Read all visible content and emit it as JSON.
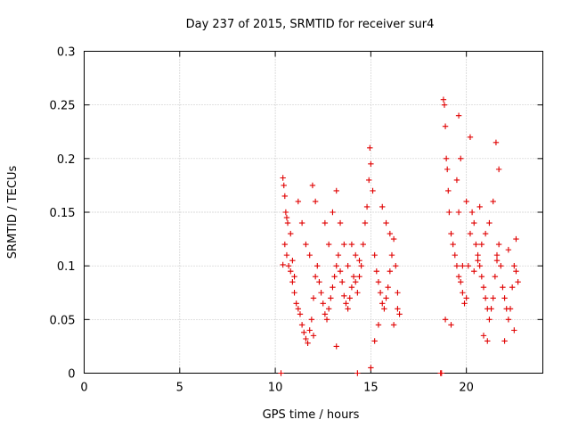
{
  "chart_data": {
    "type": "scatter",
    "title": "Day 237 of 2015, SRMTID for receiver sur4",
    "xlabel": "GPS time / hours",
    "ylabel": "SRMTID / TECUs",
    "xlim": [
      0,
      24.0
    ],
    "ylim": [
      0,
      0.3
    ],
    "xticks": [
      0,
      5,
      10,
      15,
      20
    ],
    "xtick_labels": [
      "0",
      "5",
      "10",
      "15",
      "20"
    ],
    "yticks": [
      0,
      0.05,
      0.1,
      0.15,
      0.2,
      0.25,
      0.3
    ],
    "ytick_labels": [
      "0",
      "0.05",
      "0.1",
      "0.15",
      "0.2",
      "0.25",
      "0.3"
    ],
    "grid": true,
    "marker": "+",
    "color": "#e00000",
    "series": [
      {
        "name": "SRMTID",
        "points": [
          [
            10.3,
            0.0
          ],
          [
            10.4,
            0.182
          ],
          [
            10.45,
            0.175
          ],
          [
            10.5,
            0.165
          ],
          [
            10.55,
            0.15
          ],
          [
            10.6,
            0.145
          ],
          [
            10.65,
            0.14
          ],
          [
            10.5,
            0.12
          ],
          [
            10.6,
            0.11
          ],
          [
            10.7,
            0.1
          ],
          [
            10.4,
            0.101
          ],
          [
            10.8,
            0.095
          ],
          [
            10.9,
            0.085
          ],
          [
            11.0,
            0.075
          ],
          [
            11.1,
            0.065
          ],
          [
            11.2,
            0.06
          ],
          [
            11.3,
            0.055
          ],
          [
            11.4,
            0.045
          ],
          [
            11.5,
            0.038
          ],
          [
            11.6,
            0.032
          ],
          [
            11.7,
            0.028
          ],
          [
            11.8,
            0.04
          ],
          [
            11.9,
            0.05
          ],
          [
            12.0,
            0.07
          ],
          [
            12.1,
            0.09
          ],
          [
            12.2,
            0.1
          ],
          [
            12.3,
            0.085
          ],
          [
            12.4,
            0.075
          ],
          [
            12.5,
            0.065
          ],
          [
            12.6,
            0.055
          ],
          [
            12.7,
            0.05
          ],
          [
            12.8,
            0.06
          ],
          [
            12.9,
            0.07
          ],
          [
            13.0,
            0.08
          ],
          [
            13.1,
            0.09
          ],
          [
            13.2,
            0.1
          ],
          [
            13.3,
            0.11
          ],
          [
            13.4,
            0.095
          ],
          [
            13.5,
            0.085
          ],
          [
            13.6,
            0.072
          ],
          [
            13.7,
            0.065
          ],
          [
            13.8,
            0.06
          ],
          [
            13.9,
            0.07
          ],
          [
            14.0,
            0.08
          ],
          [
            14.1,
            0.09
          ],
          [
            14.2,
            0.085
          ],
          [
            14.3,
            0.075
          ],
          [
            14.4,
            0.09
          ],
          [
            14.5,
            0.1
          ],
          [
            14.6,
            0.12
          ],
          [
            14.7,
            0.14
          ],
          [
            14.8,
            0.155
          ],
          [
            14.9,
            0.18
          ],
          [
            14.95,
            0.21
          ],
          [
            15.0,
            0.195
          ],
          [
            15.1,
            0.17
          ],
          [
            15.2,
            0.11
          ],
          [
            15.3,
            0.095
          ],
          [
            15.4,
            0.085
          ],
          [
            15.5,
            0.075
          ],
          [
            15.6,
            0.065
          ],
          [
            15.7,
            0.06
          ],
          [
            15.8,
            0.07
          ],
          [
            15.9,
            0.08
          ],
          [
            16.0,
            0.095
          ],
          [
            16.1,
            0.11
          ],
          [
            16.2,
            0.125
          ],
          [
            16.3,
            0.1
          ],
          [
            16.4,
            0.075
          ],
          [
            16.5,
            0.055
          ],
          [
            11.95,
            0.175
          ],
          [
            12.1,
            0.16
          ],
          [
            11.2,
            0.16
          ],
          [
            11.4,
            0.14
          ],
          [
            11.6,
            0.12
          ],
          [
            11.8,
            0.11
          ],
          [
            12.6,
            0.14
          ],
          [
            12.8,
            0.12
          ],
          [
            13.0,
            0.15
          ],
          [
            13.2,
            0.17
          ],
          [
            13.4,
            0.14
          ],
          [
            13.6,
            0.12
          ],
          [
            13.8,
            0.1
          ],
          [
            14.0,
            0.12
          ],
          [
            14.2,
            0.11
          ],
          [
            14.4,
            0.105
          ],
          [
            15.0,
            0.005
          ],
          [
            15.2,
            0.03
          ],
          [
            15.4,
            0.045
          ],
          [
            15.6,
            0.155
          ],
          [
            15.8,
            0.14
          ],
          [
            16.0,
            0.13
          ],
          [
            16.2,
            0.045
          ],
          [
            16.4,
            0.06
          ],
          [
            14.3,
            0.0
          ],
          [
            13.2,
            0.025
          ],
          [
            12.0,
            0.035
          ],
          [
            11.0,
            0.09
          ],
          [
            10.9,
            0.105
          ],
          [
            10.8,
            0.13
          ],
          [
            18.65,
            0.0
          ],
          [
            18.7,
            0.0
          ],
          [
            18.8,
            0.255
          ],
          [
            18.85,
            0.25
          ],
          [
            18.9,
            0.23
          ],
          [
            18.95,
            0.2
          ],
          [
            19.0,
            0.19
          ],
          [
            19.05,
            0.17
          ],
          [
            19.1,
            0.15
          ],
          [
            19.2,
            0.13
          ],
          [
            19.3,
            0.12
          ],
          [
            19.4,
            0.11
          ],
          [
            19.5,
            0.1
          ],
          [
            19.6,
            0.09
          ],
          [
            19.7,
            0.085
          ],
          [
            19.8,
            0.075
          ],
          [
            19.9,
            0.065
          ],
          [
            20.0,
            0.07
          ],
          [
            20.1,
            0.1
          ],
          [
            20.2,
            0.13
          ],
          [
            20.3,
            0.15
          ],
          [
            20.4,
            0.14
          ],
          [
            20.5,
            0.12
          ],
          [
            20.6,
            0.11
          ],
          [
            20.7,
            0.1
          ],
          [
            20.8,
            0.09
          ],
          [
            20.9,
            0.08
          ],
          [
            21.0,
            0.07
          ],
          [
            21.1,
            0.06
          ],
          [
            21.2,
            0.05
          ],
          [
            21.3,
            0.06
          ],
          [
            21.4,
            0.07
          ],
          [
            21.5,
            0.09
          ],
          [
            21.6,
            0.11
          ],
          [
            21.7,
            0.12
          ],
          [
            21.8,
            0.1
          ],
          [
            21.9,
            0.08
          ],
          [
            22.0,
            0.07
          ],
          [
            22.1,
            0.06
          ],
          [
            22.2,
            0.05
          ],
          [
            22.3,
            0.06
          ],
          [
            22.4,
            0.08
          ],
          [
            22.5,
            0.1
          ],
          [
            22.6,
            0.095
          ],
          [
            22.7,
            0.085
          ],
          [
            19.6,
            0.24
          ],
          [
            19.7,
            0.2
          ],
          [
            19.5,
            0.18
          ],
          [
            20.2,
            0.22
          ],
          [
            20.0,
            0.16
          ],
          [
            21.55,
            0.215
          ],
          [
            21.7,
            0.19
          ],
          [
            21.4,
            0.16
          ],
          [
            21.2,
            0.14
          ],
          [
            21.0,
            0.13
          ],
          [
            20.8,
            0.12
          ],
          [
            20.6,
            0.105
          ],
          [
            18.9,
            0.05
          ],
          [
            19.2,
            0.045
          ],
          [
            20.9,
            0.035
          ],
          [
            21.1,
            0.03
          ],
          [
            22.0,
            0.03
          ],
          [
            22.5,
            0.04
          ],
          [
            21.6,
            0.105
          ],
          [
            20.4,
            0.095
          ],
          [
            19.8,
            0.1
          ],
          [
            20.7,
            0.155
          ],
          [
            19.6,
            0.15
          ],
          [
            22.2,
            0.115
          ],
          [
            22.6,
            0.125
          ]
        ]
      }
    ]
  }
}
